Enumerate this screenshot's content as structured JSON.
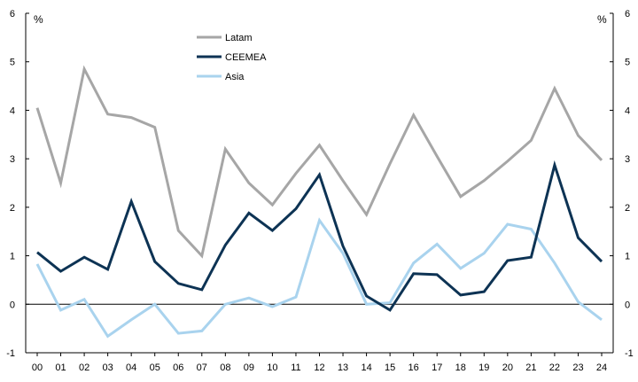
{
  "chart_data": {
    "type": "line",
    "categories": [
      "00",
      "01",
      "02",
      "03",
      "04",
      "05",
      "06",
      "07",
      "08",
      "09",
      "10",
      "11",
      "12",
      "13",
      "14",
      "15",
      "16",
      "17",
      "18",
      "19",
      "20",
      "21",
      "22",
      "23",
      "24"
    ],
    "ylabel_left": "%",
    "ylabel_right": "%",
    "ylim": [
      -1,
      6
    ],
    "yticks": [
      -1,
      0,
      1,
      2,
      3,
      4,
      5,
      6
    ],
    "grid": false,
    "legend_position": "top-left",
    "series": [
      {
        "name": "Latam",
        "color": "#a6a6a6",
        "values": [
          4.05,
          2.5,
          4.85,
          3.92,
          3.85,
          3.65,
          1.52,
          1.0,
          3.2,
          2.5,
          2.05,
          2.7,
          3.28,
          2.55,
          1.85,
          2.9,
          3.9,
          3.05,
          2.22,
          2.55,
          2.95,
          3.38,
          4.45,
          3.48,
          2.97
        ]
      },
      {
        "name": "CEEMEA",
        "color": "#0d3354",
        "values": [
          1.07,
          0.68,
          0.97,
          0.72,
          2.12,
          0.88,
          0.43,
          0.3,
          1.22,
          1.88,
          1.52,
          1.97,
          2.67,
          1.2,
          0.17,
          -0.12,
          0.63,
          0.61,
          0.19,
          0.26,
          0.9,
          0.97,
          2.87,
          1.37,
          0.88
        ]
      },
      {
        "name": "Asia",
        "color": "#a9d3ee",
        "values": [
          0.83,
          -0.12,
          0.1,
          -0.66,
          -0.32,
          0.0,
          -0.6,
          -0.55,
          0.0,
          0.13,
          -0.05,
          0.15,
          1.73,
          1.05,
          0.0,
          0.03,
          0.85,
          1.24,
          0.74,
          1.05,
          1.65,
          1.55,
          0.85,
          0.05,
          -0.32
        ]
      }
    ]
  }
}
